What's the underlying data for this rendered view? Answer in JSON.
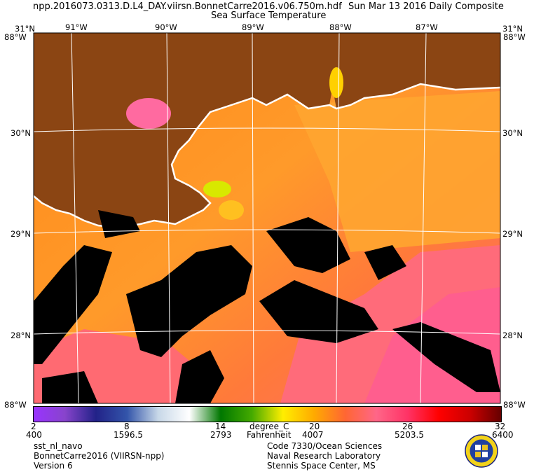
{
  "header": {
    "file_name": "npp.2016073.0313.D.L4_DAY.viirsn.BonnetCarre2016.v06.750m.hdf",
    "date_composite": "Sun Mar 13 2016 Daily Composite",
    "product": "Sea Surface Temperature"
  },
  "map": {
    "lon_labels": [
      "91°W",
      "90°W",
      "89°W",
      "88°W",
      "87°W"
    ],
    "lat_labels": [
      "30°N",
      "29°N",
      "28°N"
    ],
    "corner_labels": {
      "top_left": "31°N",
      "top_left_lon": "88°W",
      "top_right": "31°N",
      "top_right_lon": "88°W",
      "bottom_left": "88°W",
      "bottom_right": "88°W"
    },
    "colors": {
      "land": "#8b4513",
      "no_data": "#000000",
      "coast": "#ffffff",
      "grid": "#ffffff"
    }
  },
  "colorbar": {
    "celsius_ticks": [
      "2",
      "8",
      "14",
      "20",
      "26",
      "32"
    ],
    "count_ticks": [
      "400",
      "1596.5",
      "2793",
      "4007",
      "5203.5",
      "6400"
    ],
    "unit_c": "degree_C",
    "unit_f": "Fahrenheit",
    "stops": [
      "#9933ff",
      "#8844cc",
      "#222288",
      "#3355aa",
      "#c8d8e8",
      "#ffffff",
      "#007700",
      "#44aa00",
      "#ffee00",
      "#ffaa00",
      "#ff6633",
      "#ff6688",
      "#ff3366",
      "#ff0000",
      "#cc0000",
      "#660000"
    ]
  },
  "footer": {
    "left": [
      "sst_nl_navo",
      "BonnetCarre2016 (VIIRSN-npp)",
      "Version 6"
    ],
    "center": [
      "Code 7330/Ocean Sciences",
      "Naval Research Laboratory",
      "Stennis Space Center, MS"
    ]
  }
}
